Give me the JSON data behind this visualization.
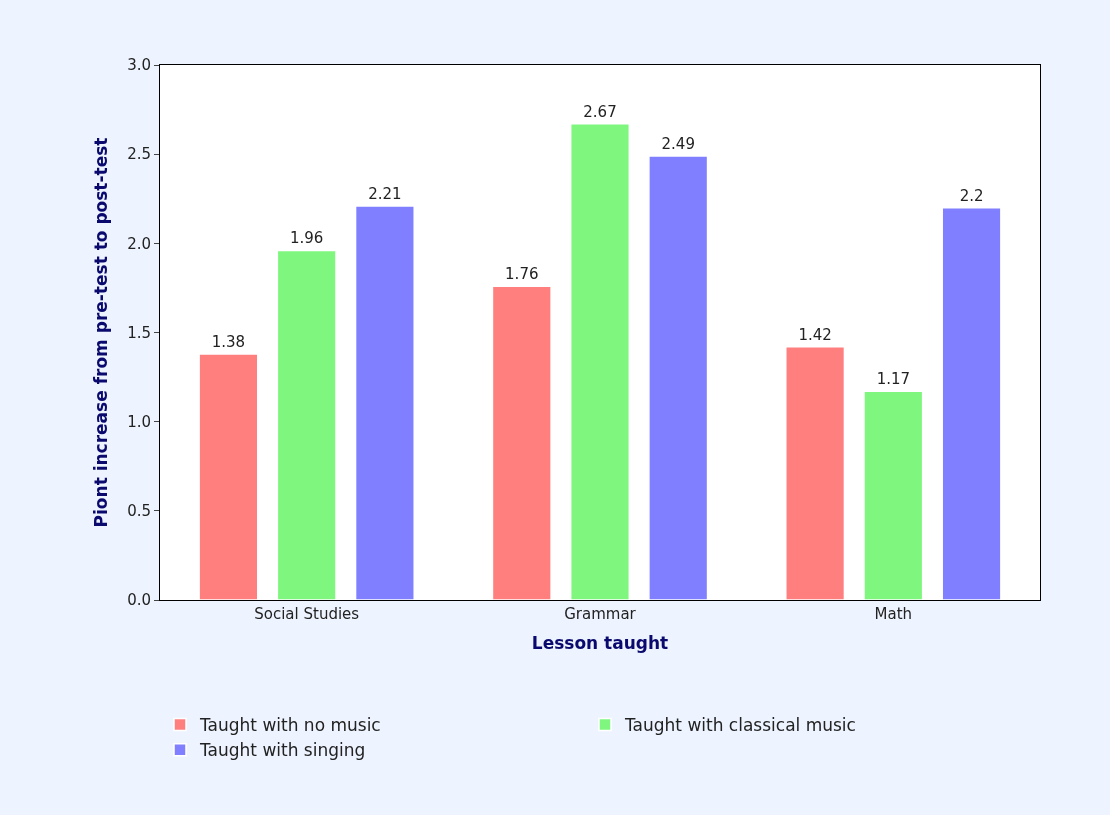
{
  "chart_data": {
    "type": "bar",
    "xlabel": "Lesson taught",
    "ylabel": "Piont increase from pre-test to post-test",
    "categories": [
      "Social Studies",
      "Grammar",
      "Math"
    ],
    "series": [
      {
        "name": "Taught with no music",
        "color": "#ff7f7f",
        "values": [
          1.38,
          1.76,
          1.42
        ]
      },
      {
        "name": "Taught with classical music",
        "color": "#7ff77f",
        "values": [
          1.96,
          2.67,
          1.17
        ]
      },
      {
        "name": "Taught with singing",
        "color": "#7f7fff",
        "values": [
          2.21,
          2.49,
          2.2
        ]
      }
    ],
    "ylim": [
      0,
      3
    ],
    "yticks": [
      {
        "value": 0,
        "label": "0.0"
      },
      {
        "value": 0.5,
        "label": "0.5"
      },
      {
        "value": 1,
        "label": "1.0"
      },
      {
        "value": 1.5,
        "label": "1.5"
      },
      {
        "value": 2,
        "label": "2.0"
      },
      {
        "value": 2.5,
        "label": "2.5"
      },
      {
        "value": 3,
        "label": "3.0"
      }
    ],
    "data_labels": true,
    "legend": "bottom"
  }
}
